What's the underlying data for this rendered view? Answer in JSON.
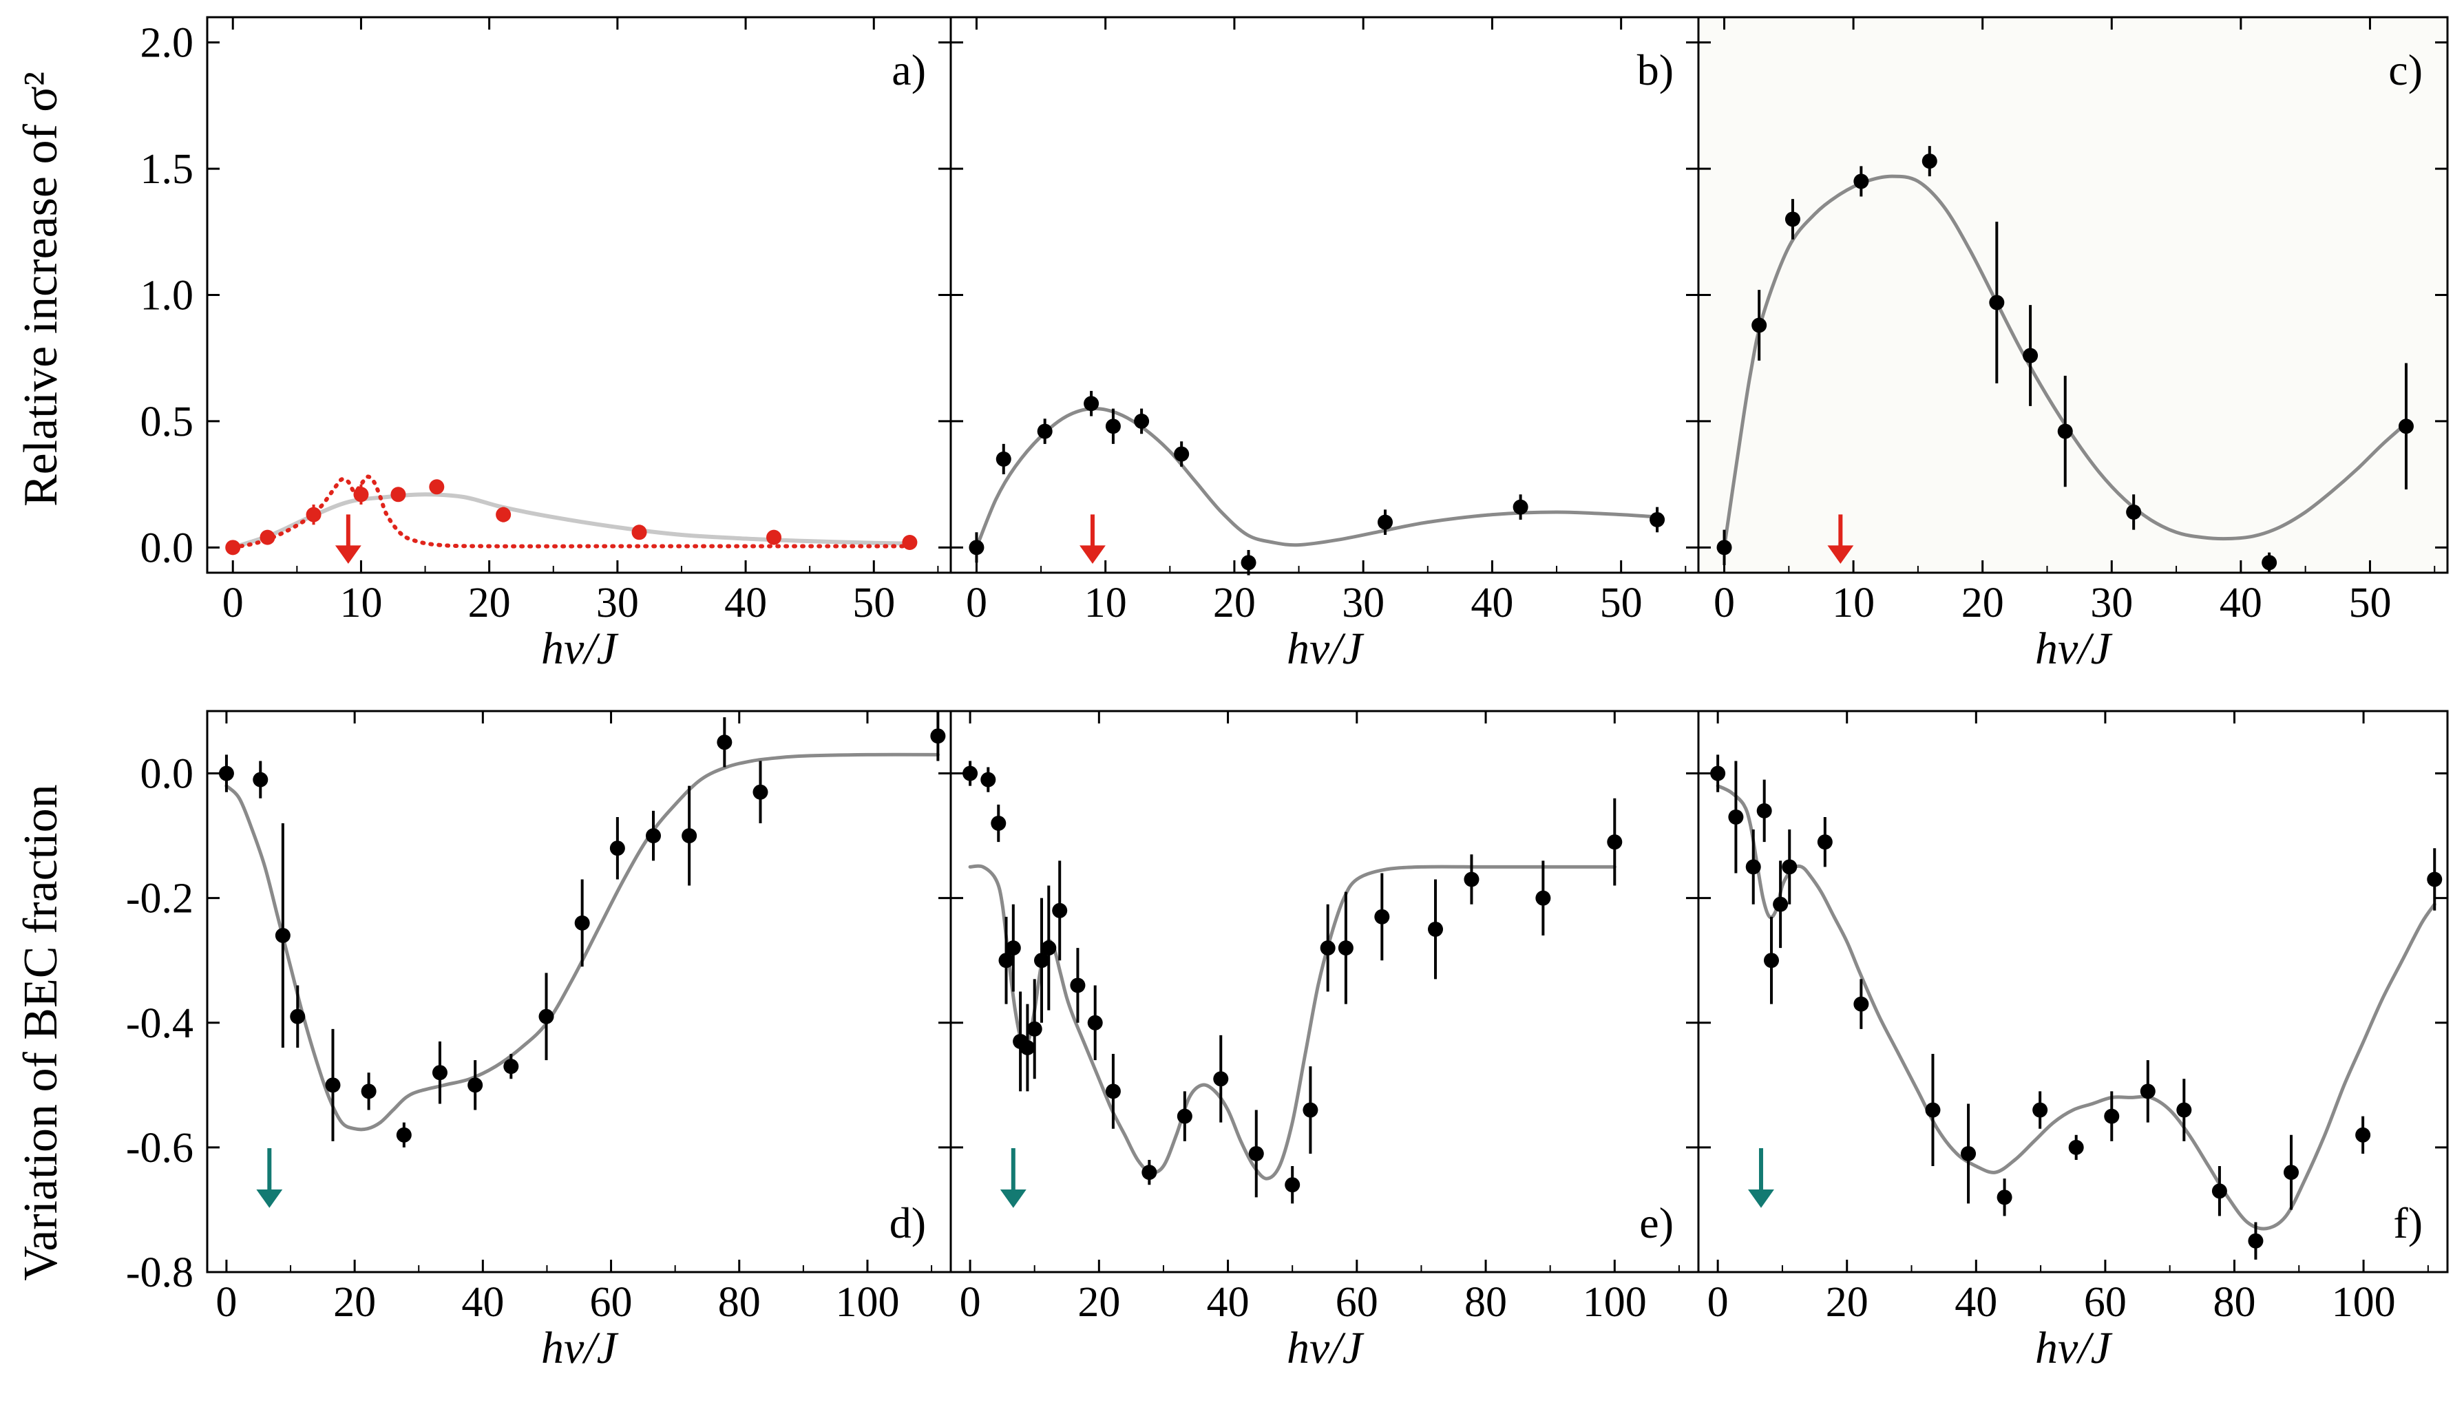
{
  "figure": {
    "top_ylabel": "Relative increase of σ²",
    "bottom_ylabel": "Variation of BEC fraction",
    "colors": {
      "data_black": "#000000",
      "data_red": "#e0241b",
      "fit_gray": "#8a8a8a",
      "fit_lightgray": "#c8c8c8",
      "arrow_red": "#e0241b",
      "arrow_teal": "#137a72",
      "panel_c_bg": "#fbfbf8"
    }
  },
  "chart_data": [
    {
      "panel": "a)",
      "type": "scatter",
      "xlabel": "hν/J",
      "ylabel": "Relative increase of σ²",
      "xlim": [
        -2,
        56
      ],
      "ylim": [
        -0.1,
        2.1
      ],
      "xticks": [
        0,
        10,
        20,
        30,
        40,
        50
      ],
      "xtick_labels": [
        "0",
        "10",
        "20",
        "30",
        "40",
        "50"
      ],
      "yticks": [
        0,
        0.5,
        1.0,
        1.5,
        2.0
      ],
      "ytick_labels": [
        "0.0",
        "0.5",
        "1.0",
        "1.5",
        "2.0"
      ],
      "arrow_x": 9,
      "arrow_color": "red",
      "series": [
        {
          "name": "data",
          "color": "red",
          "x": [
            0,
            2.7,
            6.3,
            10,
            12.9,
            15.9,
            21.1,
            31.7,
            42.2,
            52.8
          ],
          "y": [
            0.0,
            0.04,
            0.13,
            0.21,
            0.21,
            0.24,
            0.13,
            0.06,
            0.04,
            0.02
          ],
          "err": [
            0.015,
            0.02,
            0.04,
            0.04,
            0.02,
            0.015,
            0.03,
            0.02,
            0.02,
            0.015
          ]
        },
        {
          "name": "fit",
          "style": "solid-light",
          "x": [
            0,
            3,
            6,
            9,
            12,
            15,
            18,
            21,
            25,
            30,
            35,
            40,
            45,
            50,
            53
          ],
          "y": [
            0.0,
            0.05,
            0.12,
            0.18,
            0.2,
            0.21,
            0.2,
            0.16,
            0.12,
            0.08,
            0.05,
            0.035,
            0.025,
            0.018,
            0.015
          ]
        },
        {
          "name": "theory",
          "style": "dotted-red",
          "x": [
            0,
            2,
            4,
            6,
            7,
            8,
            8.5,
            9,
            9.5,
            10,
            10.5,
            11,
            11.5,
            12,
            13,
            14,
            16,
            20,
            30,
            40,
            53
          ],
          "y": [
            0.0,
            0.02,
            0.06,
            0.12,
            0.17,
            0.24,
            0.27,
            0.26,
            0.22,
            0.25,
            0.28,
            0.26,
            0.2,
            0.13,
            0.06,
            0.03,
            0.01,
            0.005,
            0.005,
            0.005,
            0.005
          ]
        }
      ]
    },
    {
      "panel": "b)",
      "type": "scatter",
      "xlabel": "hν/J",
      "xlim": [
        -2,
        56
      ],
      "ylim": [
        -0.1,
        2.1
      ],
      "xticks": [
        0,
        10,
        20,
        30,
        40,
        50
      ],
      "xtick_labels": [
        "0",
        "10",
        "20",
        "30",
        "40",
        "50"
      ],
      "arrow_x": 9,
      "arrow_color": "red",
      "series": [
        {
          "name": "data",
          "color": "black",
          "x": [
            0,
            2.1,
            5.3,
            8.9,
            10.6,
            12.8,
            15.9,
            21.1,
            31.7,
            42.2,
            52.8
          ],
          "y": [
            0.0,
            0.35,
            0.46,
            0.57,
            0.48,
            0.5,
            0.37,
            -0.06,
            0.1,
            0.16,
            0.11
          ],
          "err": [
            0.06,
            0.06,
            0.05,
            0.05,
            0.07,
            0.05,
            0.05,
            0.05,
            0.05,
            0.05,
            0.05
          ]
        },
        {
          "name": "fit",
          "style": "solid",
          "x": [
            0,
            1.5,
            3,
            5,
            7,
            9,
            11,
            13,
            15,
            17,
            19,
            21,
            23,
            25,
            28,
            31,
            35,
            40,
            45,
            50,
            53
          ],
          "y": [
            0.0,
            0.19,
            0.32,
            0.44,
            0.52,
            0.55,
            0.53,
            0.47,
            0.38,
            0.26,
            0.14,
            0.05,
            0.02,
            0.01,
            0.03,
            0.06,
            0.1,
            0.13,
            0.14,
            0.13,
            0.12
          ]
        }
      ]
    },
    {
      "panel": "c)",
      "type": "scatter",
      "xlabel": "hν/J",
      "xlim": [
        -2,
        56
      ],
      "ylim": [
        -0.1,
        2.1
      ],
      "xticks": [
        0,
        10,
        20,
        30,
        40,
        50
      ],
      "xtick_labels": [
        "0",
        "10",
        "20",
        "30",
        "40",
        "50"
      ],
      "arrow_x": 9,
      "arrow_color": "red",
      "series": [
        {
          "name": "data",
          "color": "black",
          "x": [
            0,
            2.7,
            5.3,
            10.6,
            15.9,
            21.1,
            23.7,
            26.4,
            31.7,
            42.2,
            52.8
          ],
          "y": [
            0.0,
            0.88,
            1.3,
            1.45,
            1.53,
            0.97,
            0.76,
            0.46,
            0.14,
            -0.06,
            0.48
          ],
          "err": [
            0.07,
            0.14,
            0.08,
            0.06,
            0.06,
            0.32,
            0.2,
            0.22,
            0.07,
            0.04,
            0.25
          ]
        },
        {
          "name": "fit",
          "style": "solid",
          "x": [
            0,
            1,
            2,
            3,
            5,
            7,
            9,
            11,
            13,
            15,
            17,
            19,
            21,
            23,
            25,
            27,
            29,
            31,
            33,
            35,
            37,
            39,
            41,
            43,
            45,
            47,
            49,
            51,
            53
          ],
          "y": [
            0.0,
            0.35,
            0.68,
            0.92,
            1.19,
            1.32,
            1.4,
            1.45,
            1.47,
            1.45,
            1.35,
            1.18,
            0.98,
            0.78,
            0.6,
            0.44,
            0.3,
            0.19,
            0.11,
            0.06,
            0.04,
            0.035,
            0.045,
            0.08,
            0.14,
            0.22,
            0.31,
            0.41,
            0.5
          ]
        }
      ]
    },
    {
      "panel": "d)",
      "type": "scatter",
      "xlabel": "hν/J",
      "ylabel": "Variation of BEC fraction",
      "xlim": [
        -3,
        113
      ],
      "ylim": [
        -0.8,
        0.1
      ],
      "xticks": [
        0,
        20,
        40,
        60,
        80,
        100
      ],
      "xtick_labels": [
        "0",
        "20",
        "40",
        "60",
        "80",
        "100"
      ],
      "yticks": [
        0,
        -0.2,
        -0.4,
        -0.6,
        -0.8
      ],
      "ytick_labels": [
        "0.0",
        "-0.2",
        "-0.4",
        "-0.6",
        "-0.8"
      ],
      "arrow_x": 6.7,
      "arrow_color": "teal",
      "series": [
        {
          "name": "data",
          "color": "black",
          "x": [
            0,
            5.3,
            8.8,
            11.1,
            16.6,
            22.2,
            27.7,
            33.3,
            38.8,
            44.4,
            49.9,
            55.5,
            61,
            66.6,
            72.2,
            77.7,
            83.3,
            111
          ],
          "y": [
            0.0,
            -0.01,
            -0.26,
            -0.39,
            -0.5,
            -0.51,
            -0.58,
            -0.48,
            -0.5,
            -0.47,
            -0.39,
            -0.24,
            -0.12,
            -0.1,
            -0.1,
            0.05,
            -0.03,
            0.06
          ],
          "err": [
            0.03,
            0.03,
            0.18,
            0.05,
            0.09,
            0.03,
            0.02,
            0.05,
            0.04,
            0.02,
            0.07,
            0.07,
            0.05,
            0.04,
            0.08,
            0.04,
            0.05,
            0.04
          ]
        },
        {
          "name": "fit",
          "style": "solid",
          "x": [
            0,
            2,
            4,
            6,
            8,
            10,
            12,
            14,
            16,
            18,
            20,
            22,
            24,
            26,
            28,
            30,
            34,
            38,
            42,
            46,
            50,
            54,
            58,
            62,
            66,
            70,
            74,
            78,
            82,
            86,
            90,
            100,
            111
          ],
          "y": [
            -0.02,
            -0.04,
            -0.09,
            -0.15,
            -0.23,
            -0.31,
            -0.39,
            -0.46,
            -0.52,
            -0.56,
            -0.57,
            -0.57,
            -0.56,
            -0.54,
            -0.52,
            -0.51,
            -0.5,
            -0.49,
            -0.47,
            -0.44,
            -0.4,
            -0.33,
            -0.25,
            -0.17,
            -0.1,
            -0.05,
            -0.01,
            0.01,
            0.02,
            0.025,
            0.028,
            0.03,
            0.03
          ]
        }
      ]
    },
    {
      "panel": "e)",
      "type": "scatter",
      "xlabel": "hν/J",
      "xlim": [
        -3,
        113
      ],
      "ylim": [
        -0.8,
        0.1
      ],
      "xticks": [
        0,
        20,
        40,
        60,
        80,
        100
      ],
      "xtick_labels": [
        "0",
        "20",
        "40",
        "60",
        "80",
        "100"
      ],
      "arrow_x": 6.7,
      "arrow_color": "teal",
      "series": [
        {
          "name": "data",
          "color": "black",
          "x": [
            0,
            2.8,
            4.4,
            5.6,
            6.7,
            7.8,
            8.9,
            10,
            11.1,
            12.2,
            13.9,
            16.7,
            19.4,
            22.2,
            27.8,
            33.3,
            38.9,
            44.4,
            50,
            52.8,
            55.5,
            58.3,
            63.9,
            72.2,
            77.8,
            88.9,
            100
          ],
          "y": [
            0.0,
            -0.01,
            -0.08,
            -0.3,
            -0.28,
            -0.43,
            -0.44,
            -0.41,
            -0.3,
            -0.28,
            -0.22,
            -0.34,
            -0.4,
            -0.51,
            -0.64,
            -0.55,
            -0.49,
            -0.61,
            -0.66,
            -0.54,
            -0.28,
            -0.28,
            -0.23,
            -0.25,
            -0.17,
            -0.2,
            -0.11
          ],
          "err": [
            0.02,
            0.02,
            0.03,
            0.07,
            0.07,
            0.08,
            0.07,
            0.08,
            0.1,
            0.1,
            0.08,
            0.06,
            0.06,
            0.06,
            0.02,
            0.04,
            0.07,
            0.07,
            0.03,
            0.07,
            0.07,
            0.09,
            0.07,
            0.08,
            0.04,
            0.06,
            0.07
          ]
        },
        {
          "name": "fit",
          "style": "solid",
          "x": [
            0,
            2,
            4,
            5,
            6,
            7,
            8,
            9,
            10,
            11,
            12,
            13,
            14,
            15,
            16,
            18,
            20,
            22,
            24,
            26,
            28,
            30,
            32,
            34,
            36,
            38,
            40,
            42,
            44,
            46,
            48,
            50,
            52,
            54,
            56,
            58,
            60,
            64,
            70,
            80,
            90,
            100
          ],
          "y": [
            -0.15,
            -0.15,
            -0.17,
            -0.21,
            -0.3,
            -0.38,
            -0.43,
            -0.43,
            -0.38,
            -0.31,
            -0.27,
            -0.28,
            -0.32,
            -0.36,
            -0.39,
            -0.44,
            -0.49,
            -0.54,
            -0.58,
            -0.62,
            -0.64,
            -0.63,
            -0.58,
            -0.52,
            -0.5,
            -0.51,
            -0.54,
            -0.59,
            -0.63,
            -0.65,
            -0.63,
            -0.56,
            -0.45,
            -0.34,
            -0.26,
            -0.2,
            -0.17,
            -0.155,
            -0.15,
            -0.15,
            -0.15,
            -0.15
          ]
        }
      ]
    },
    {
      "panel": "f)",
      "type": "scatter",
      "xlabel": "hν/J",
      "xlim": [
        -3,
        113
      ],
      "ylim": [
        -0.8,
        0.1
      ],
      "xticks": [
        0,
        20,
        40,
        60,
        80,
        100
      ],
      "xtick_labels": [
        "0",
        "20",
        "40",
        "60",
        "80",
        "100"
      ],
      "arrow_x": 6.7,
      "arrow_color": "teal",
      "series": [
        {
          "name": "data",
          "color": "black",
          "x": [
            0,
            2.8,
            5.5,
            7.2,
            8.3,
            9.7,
            11.1,
            16.6,
            22.2,
            33.3,
            38.8,
            44.4,
            49.9,
            55.5,
            61,
            66.6,
            72.2,
            77.7,
            83.3,
            88.8,
            99.9,
            111
          ],
          "y": [
            0.0,
            -0.07,
            -0.15,
            -0.06,
            -0.3,
            -0.21,
            -0.15,
            -0.11,
            -0.37,
            -0.54,
            -0.61,
            -0.68,
            -0.54,
            -0.6,
            -0.55,
            -0.51,
            -0.54,
            -0.67,
            -0.75,
            -0.64,
            -0.58,
            -0.17
          ],
          "err": [
            0.03,
            0.09,
            0.06,
            0.05,
            0.07,
            0.07,
            0.06,
            0.04,
            0.04,
            0.09,
            0.08,
            0.03,
            0.03,
            0.02,
            0.04,
            0.05,
            0.05,
            0.04,
            0.03,
            0.06,
            0.03,
            0.05
          ]
        },
        {
          "name": "fit",
          "style": "solid",
          "x": [
            0,
            2,
            4,
            5,
            6,
            7,
            8,
            9,
            10,
            11,
            12,
            13,
            14,
            16,
            18,
            20,
            22,
            25,
            28,
            31,
            34,
            37,
            40,
            43,
            46,
            49,
            52,
            55,
            58,
            61,
            64,
            67,
            70,
            73,
            76,
            79,
            82,
            85,
            88,
            91,
            94,
            97,
            100,
            103,
            106,
            109,
            111
          ],
          "y": [
            -0.02,
            -0.03,
            -0.05,
            -0.08,
            -0.14,
            -0.2,
            -0.23,
            -0.22,
            -0.18,
            -0.16,
            -0.15,
            -0.15,
            -0.16,
            -0.19,
            -0.23,
            -0.27,
            -0.32,
            -0.39,
            -0.45,
            -0.51,
            -0.57,
            -0.61,
            -0.63,
            -0.64,
            -0.62,
            -0.59,
            -0.56,
            -0.54,
            -0.53,
            -0.52,
            -0.52,
            -0.52,
            -0.54,
            -0.58,
            -0.63,
            -0.68,
            -0.72,
            -0.73,
            -0.71,
            -0.65,
            -0.58,
            -0.5,
            -0.43,
            -0.36,
            -0.3,
            -0.24,
            -0.21
          ]
        }
      ]
    }
  ]
}
